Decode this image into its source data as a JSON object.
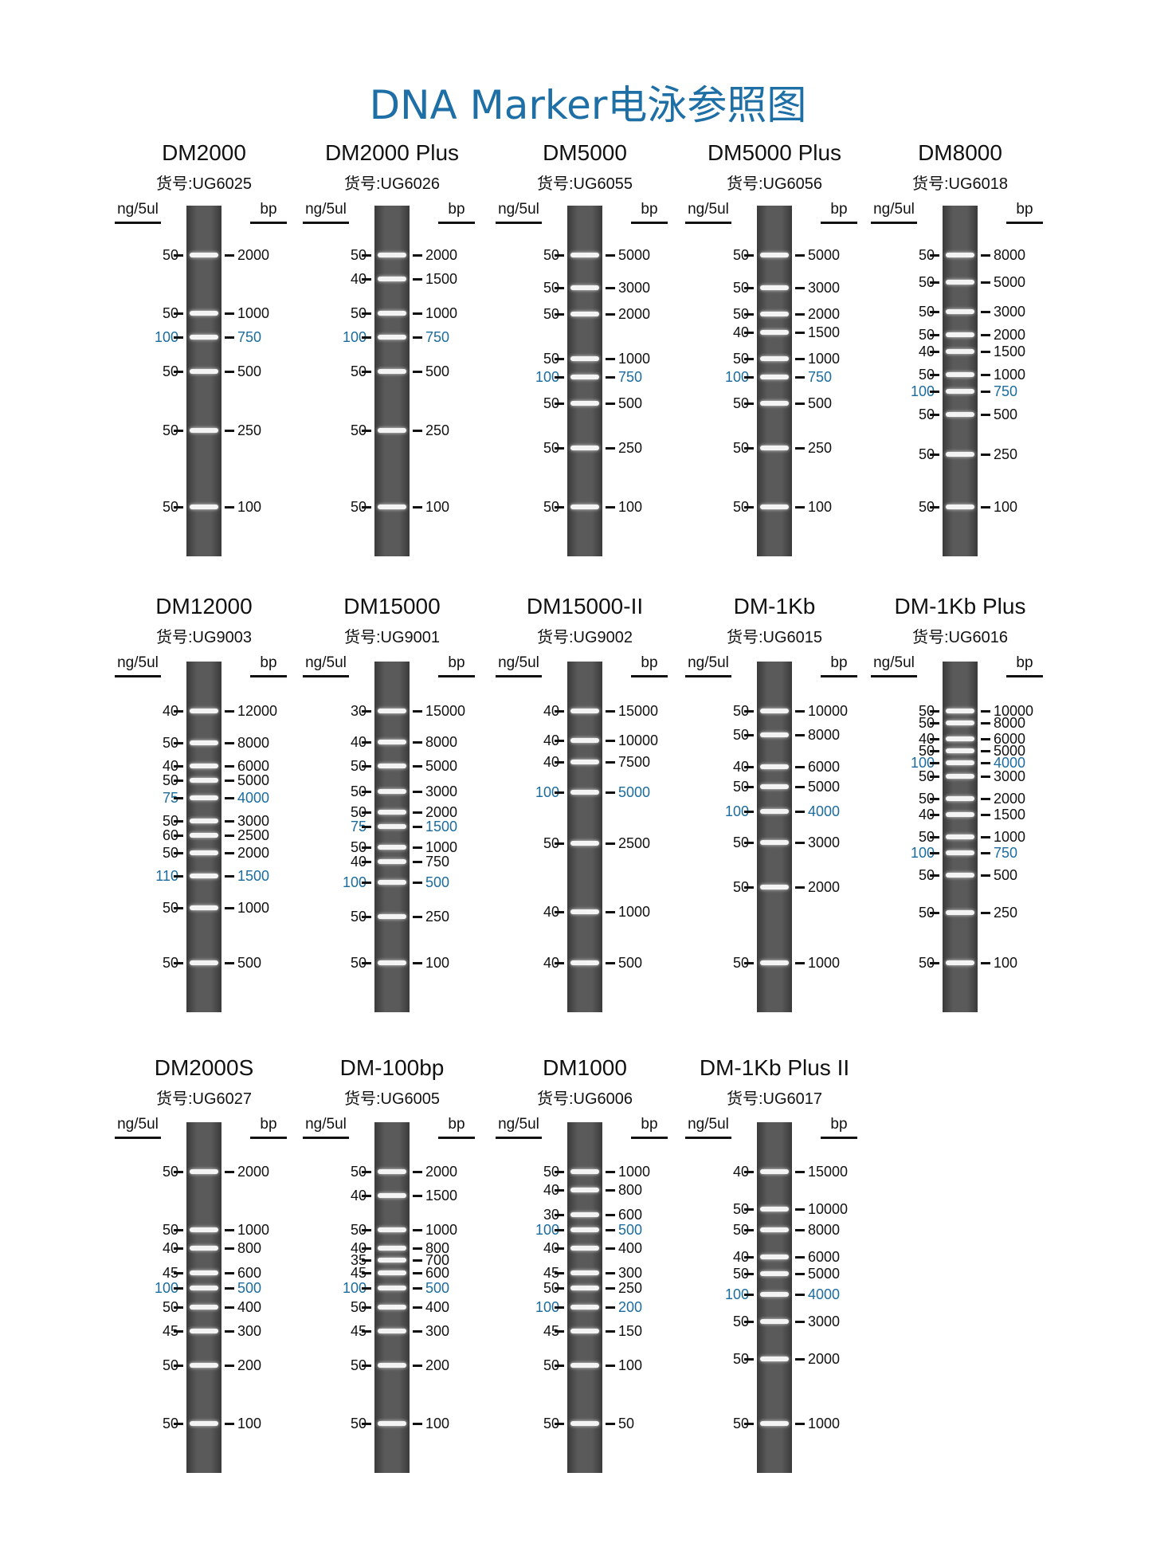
{
  "title": "DNA Marker电泳参照图",
  "headers": {
    "ng": "ng/5ul",
    "bp": "bp"
  },
  "highlight_color": "#1b6c9e",
  "ladders": [
    {
      "name": "DM2000",
      "catalog": "货号:UG6025",
      "bands": [
        [
          "50",
          "2000"
        ],
        [
          "50",
          "1000"
        ],
        [
          "100",
          "750",
          1
        ],
        [
          "50",
          "500"
        ],
        [
          "50",
          "250"
        ],
        [
          "50",
          "100"
        ]
      ]
    },
    {
      "name": "DM2000 Plus",
      "catalog": "货号:UG6026",
      "bands": [
        [
          "50",
          "2000"
        ],
        [
          "40",
          "1500"
        ],
        [
          "50",
          "1000"
        ],
        [
          "100",
          "750",
          1
        ],
        [
          "50",
          "500"
        ],
        [
          "50",
          "250"
        ],
        [
          "50",
          "100"
        ]
      ]
    },
    {
      "name": "DM5000",
      "catalog": "货号:UG6055",
      "bands": [
        [
          "50",
          "5000"
        ],
        [
          "50",
          "3000"
        ],
        [
          "50",
          "2000"
        ],
        [
          "50",
          "1000"
        ],
        [
          "100",
          "750",
          1
        ],
        [
          "50",
          "500"
        ],
        [
          "50",
          "250"
        ],
        [
          "50",
          "100"
        ]
      ]
    },
    {
      "name": "DM5000 Plus",
      "catalog": "货号:UG6056",
      "bands": [
        [
          "50",
          "5000"
        ],
        [
          "50",
          "3000"
        ],
        [
          "50",
          "2000"
        ],
        [
          "40",
          "1500"
        ],
        [
          "50",
          "1000"
        ],
        [
          "100",
          "750",
          1
        ],
        [
          "50",
          "500"
        ],
        [
          "50",
          "250"
        ],
        [
          "50",
          "100"
        ]
      ]
    },
    {
      "name": "DM8000",
      "catalog": "货号:UG6018",
      "bands": [
        [
          "50",
          "8000"
        ],
        [
          "50",
          "5000"
        ],
        [
          "50",
          "3000"
        ],
        [
          "50",
          "2000"
        ],
        [
          "40",
          "1500"
        ],
        [
          "50",
          "1000"
        ],
        [
          "100",
          "750",
          1
        ],
        [
          "50",
          "500"
        ],
        [
          "50",
          "250"
        ],
        [
          "50",
          "100"
        ]
      ]
    },
    {
      "name": "DM12000",
      "catalog": "货号:UG9003",
      "bands": [
        [
          "40",
          "12000"
        ],
        [
          "50",
          "8000"
        ],
        [
          "40",
          "6000"
        ],
        [
          "50",
          "5000"
        ],
        [
          "75",
          "4000",
          1
        ],
        [
          "50",
          "3000"
        ],
        [
          "60",
          "2500"
        ],
        [
          "50",
          "2000"
        ],
        [
          "110",
          "1500",
          1
        ],
        [
          "50",
          "1000"
        ],
        [
          "50",
          "500"
        ]
      ]
    },
    {
      "name": "DM15000",
      "catalog": "货号:UG9001",
      "bands": [
        [
          "30",
          "15000"
        ],
        [
          "40",
          "8000"
        ],
        [
          "50",
          "5000"
        ],
        [
          "50",
          "3000"
        ],
        [
          "50",
          "2000"
        ],
        [
          "75",
          "1500",
          1
        ],
        [
          "50",
          "1000"
        ],
        [
          "40",
          "750"
        ],
        [
          "100",
          "500",
          1
        ],
        [
          "50",
          "250"
        ],
        [
          "50",
          "100"
        ]
      ]
    },
    {
      "name": "DM15000-II",
      "catalog": "货号:UG9002",
      "bands": [
        [
          "40",
          "15000"
        ],
        [
          "40",
          "10000"
        ],
        [
          "40",
          "7500"
        ],
        [
          "100",
          "5000",
          1
        ],
        [
          "50",
          "2500"
        ],
        [
          "40",
          "1000"
        ],
        [
          "40",
          "500"
        ]
      ]
    },
    {
      "name": "DM-1Kb",
      "catalog": "货号:UG6015",
      "bands": [
        [
          "50",
          "10000"
        ],
        [
          "50",
          "8000"
        ],
        [
          "40",
          "6000"
        ],
        [
          "50",
          "5000"
        ],
        [
          "100",
          "4000",
          1
        ],
        [
          "50",
          "3000"
        ],
        [
          "50",
          "2000"
        ],
        [
          "50",
          "1000"
        ]
      ]
    },
    {
      "name": "DM-1Kb Plus",
      "catalog": "货号:UG6016",
      "bands": [
        [
          "50",
          "10000"
        ],
        [
          "50",
          "8000"
        ],
        [
          "40",
          "6000"
        ],
        [
          "50",
          "5000"
        ],
        [
          "100",
          "4000",
          1
        ],
        [
          "50",
          "3000"
        ],
        [
          "50",
          "2000"
        ],
        [
          "40",
          "1500"
        ],
        [
          "50",
          "1000"
        ],
        [
          "100",
          "750",
          1
        ],
        [
          "50",
          "500"
        ],
        [
          "50",
          "250"
        ],
        [
          "50",
          "100"
        ]
      ]
    },
    {
      "name": "DM2000S",
      "catalog": "货号:UG6027",
      "bands": [
        [
          "50",
          "2000"
        ],
        [
          "50",
          "1000"
        ],
        [
          "40",
          "800"
        ],
        [
          "45",
          "600"
        ],
        [
          "100",
          "500",
          1
        ],
        [
          "50",
          "400"
        ],
        [
          "45",
          "300"
        ],
        [
          "50",
          "200"
        ],
        [
          "50",
          "100"
        ]
      ]
    },
    {
      "name": "DM-100bp",
      "catalog": "货号:UG6005",
      "bands": [
        [
          "50",
          "2000"
        ],
        [
          "40",
          "1500"
        ],
        [
          "50",
          "1000"
        ],
        [
          "40",
          "800"
        ],
        [
          "35",
          "700"
        ],
        [
          "45",
          "600"
        ],
        [
          "100",
          "500",
          1
        ],
        [
          "50",
          "400"
        ],
        [
          "45",
          "300"
        ],
        [
          "50",
          "200"
        ],
        [
          "50",
          "100"
        ]
      ]
    },
    {
      "name": "DM1000",
      "catalog": "货号:UG6006",
      "bands": [
        [
          "50",
          "1000"
        ],
        [
          "40",
          "800"
        ],
        [
          "30",
          "600"
        ],
        [
          "100",
          "500",
          1
        ],
        [
          "40",
          "400"
        ],
        [
          "45",
          "300"
        ],
        [
          "50",
          "250"
        ],
        [
          "100",
          "200",
          1
        ],
        [
          "45",
          "150"
        ],
        [
          "50",
          "100"
        ],
        [
          "50",
          "50"
        ]
      ]
    },
    {
      "name": "DM-1Kb Plus II",
      "catalog": "货号:UG6017",
      "bands": [
        [
          "40",
          "15000"
        ],
        [
          "50",
          "10000"
        ],
        [
          "50",
          "8000"
        ],
        [
          "40",
          "6000"
        ],
        [
          "50",
          "5000"
        ],
        [
          "100",
          "4000",
          1
        ],
        [
          "50",
          "3000"
        ],
        [
          "50",
          "2000"
        ],
        [
          "50",
          "1000"
        ]
      ]
    }
  ]
}
